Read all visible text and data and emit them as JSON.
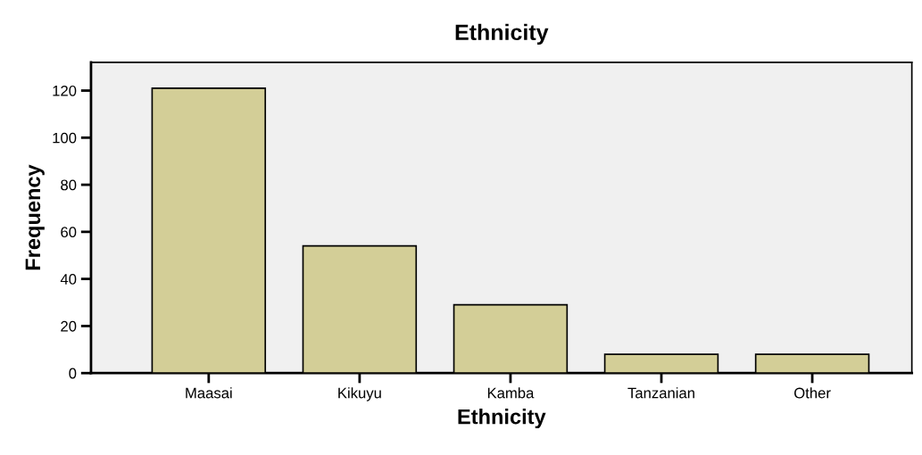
{
  "chart_data": {
    "type": "bar",
    "title": "Ethnicity",
    "xlabel": "Ethnicity",
    "ylabel": "Frequency",
    "categories": [
      "Maasai",
      "Kikuyu",
      "Kamba",
      "Tanzanian",
      "Other"
    ],
    "values": [
      121,
      54,
      29,
      8,
      8
    ],
    "color": "#d3ce97",
    "ylim": [
      0,
      132
    ],
    "yticks": [
      0,
      20,
      40,
      60,
      80,
      100,
      120
    ],
    "grid": false,
    "legend": false
  }
}
